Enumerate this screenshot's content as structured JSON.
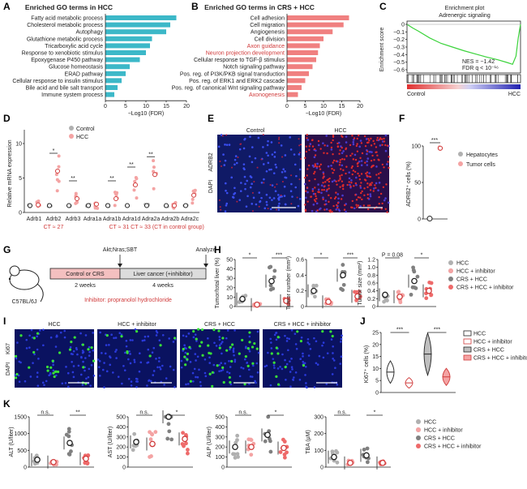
{
  "figure": {
    "panels": {
      "A": {
        "label": "A",
        "title": "Enriched GO terms in HCC",
        "xlabel": "−Log10 (FDR)",
        "ticks": [
          "0",
          "5",
          "10",
          "15",
          "20"
        ],
        "terms": [
          "Fatty acid metabolic process",
          "Cholesterol metabolic process",
          "Autophagy",
          "Glutathione metabolic process",
          "Tricarboxylic acid cycle",
          "Response to xenobiotic stimulus",
          "Epoxygenase P450 pathway",
          "Glucose homeostasis",
          "ERAD pathway",
          "Cellular response to insulin stimulus",
          "Bile acid and bile salt transport",
          "Immune system process"
        ],
        "values": [
          17.5,
          16,
          15,
          11.5,
          11,
          10,
          8.5,
          6,
          5,
          4,
          3,
          2.2
        ],
        "color": "#3cb8c8"
      },
      "B": {
        "label": "B",
        "title": "Enriched GO terms in CRS + HCC",
        "xlabel": "−Log10 (FDR)",
        "ticks": [
          "0",
          "5",
          "10",
          "15",
          "20"
        ],
        "terms": [
          "Cell adhesion",
          "Cell migration",
          "Angiogenesis",
          "Cell division",
          "Axon guidance",
          "Neuron projection development",
          "Cellular response to TGF-β stimulus",
          "Notch signaling pathway",
          "Pos. reg. of PI3K/PKB signal transduction",
          "Pos. reg. of ERK1 and ERK2 cascade",
          "Pos. reg. of canonical Wnt signaling pathway",
          "Axonogenesis"
        ],
        "highlight": [
          false,
          false,
          false,
          false,
          true,
          true,
          false,
          false,
          false,
          false,
          false,
          true
        ],
        "values": [
          17,
          15.5,
          12.5,
          10,
          9,
          8.5,
          8,
          7,
          6,
          5,
          4,
          3
        ],
        "color": "#f08080"
      },
      "C": {
        "label": "C",
        "title_line1": "Enrichment plot",
        "title_line2": "Adrenergic signaling",
        "ylabel": "Enrichment score",
        "yticks": [
          "0",
          "−0.1",
          "−0.2",
          "−0.3",
          "−0.4",
          "−0.5",
          "−0.6"
        ],
        "nes": "NES = −1.42",
        "fdr": "FDR q < 10⁻¹⁶",
        "left": "Control",
        "right": "HCC"
      },
      "D": {
        "label": "D",
        "ylabel": "Relative mRNA expression",
        "legend": [
          "Control",
          "HCC"
        ],
        "genes": [
          "Adrb1",
          "Adrb2",
          "Adrb3",
          "Adra1a",
          "Adra1b",
          "Adra1d",
          "Adra2a",
          "Adra2b",
          "Adra2c"
        ],
        "control_means": [
          1,
          1,
          1,
          1,
          1,
          1,
          1,
          1,
          1
        ],
        "hcc_means": [
          1.1,
          6,
          2,
          1.2,
          2,
          4,
          5.5,
          1,
          2.5
        ],
        "sig": [
          "",
          "*",
          "**",
          "",
          "**",
          "**",
          "**",
          "",
          ""
        ],
        "yticks": [
          "0",
          "5",
          "10"
        ],
        "ct1": "CT ≈ 27",
        "ct2": "CT ≈ 31 CT ≈ 33 (CT in control group)"
      },
      "E": {
        "label": "E",
        "left": "Control",
        "right": "HCC",
        "stain1": "ADRB2",
        "stain2": "DAPI"
      },
      "F": {
        "label": "F",
        "ylabel": "ADRB2⁺ cells (%)",
        "yticks": [
          "0",
          "50",
          "100"
        ],
        "legend": [
          "Hepatocytes",
          "Tumor cells"
        ],
        "sig": "***",
        "values": [
          0.5,
          97
        ]
      },
      "G": {
        "label": "G",
        "strain": "C57BL/6J",
        "injection": "Akt;Nras;SBT",
        "analyze": "Analyze",
        "box1": "Control or CRS",
        "box2": "Liver cancer (+inhibitor)",
        "dur1": "2 weeks",
        "dur2": "4 weeks",
        "inhibitor": "Inhibitor: propranolol hydrochloride"
      },
      "H": {
        "label": "H",
        "legend": [
          "HCC",
          "HCC + inhibitor",
          "CRS + HCC",
          "CRS + HCC + inhibitor"
        ],
        "plots": [
          {
            "ylabel": "Tumor/total liver (%)",
            "yticks": [
              "0",
              "10",
              "20",
              "30",
              "40",
              "50"
            ],
            "max": 50,
            "means": [
              8,
              2,
              27,
              6
            ],
            "sig": [
              "*",
              "***"
            ]
          },
          {
            "ylabel": "Tumor number (mm²)",
            "yticks": [
              "0",
              "0.2",
              "0.4",
              "0.6"
            ],
            "max": 0.6,
            "means": [
              0.2,
              0.06,
              0.4,
              0.13
            ],
            "sig": [
              "*",
              "***"
            ]
          },
          {
            "ylabel": "Tumor size (mm²)",
            "yticks": [
              "0",
              "0.2",
              "0.4",
              "0.6",
              "0.8",
              "1.0",
              "1.2"
            ],
            "max": 1.2,
            "means": [
              0.3,
              0.25,
              0.65,
              0.4
            ],
            "sig": [
              "P = 0.08",
              "*"
            ]
          }
        ]
      },
      "I": {
        "label": "I",
        "groups": [
          "HCC",
          "HCC + inhibitor",
          "CRS + HCC",
          "CRS + HCC + inhibitor"
        ],
        "stain1": "Ki67",
        "stain2": "DAPI"
      },
      "J": {
        "label": "J",
        "ylabel": "Ki67⁺ cells (%)",
        "yticks": [
          "0",
          "5",
          "10",
          "15",
          "20",
          "25"
        ],
        "sig": [
          "***",
          "***"
        ],
        "medians": [
          8.5,
          4,
          16,
          6.5
        ],
        "legend": [
          "HCC",
          "HCC + inhibitor",
          "CRS + HCC",
          "CRS + HCC + inhibitor"
        ]
      },
      "K": {
        "label": "K",
        "legend": [
          "HCC",
          "HCC + inhibitor",
          "CRS + HCC",
          "CRS + HCC + inhibitor"
        ],
        "plots": [
          {
            "ylabel": "ALT (U/liter)",
            "yticks": [
              "0",
              "500",
              "1000",
              "1500"
            ],
            "max": 1500,
            "means": [
              220,
              150,
              720,
              250
            ],
            "sig": [
              "n.s.",
              "**"
            ]
          },
          {
            "ylabel": "AST (U/liter)",
            "yticks": [
              "0",
              "100",
              "200",
              "300",
              "400",
              "500"
            ],
            "max": 500,
            "means": [
              250,
              230,
              500,
              280
            ],
            "sig": [
              "n.s.",
              "*"
            ]
          },
          {
            "ylabel": "ALP (U/liter)",
            "yticks": [
              "0",
              "100",
              "200",
              "300",
              "400",
              "500"
            ],
            "max": 500,
            "means": [
              200,
              200,
              320,
              190
            ],
            "sig": [
              "n.s.",
              "*"
            ]
          },
          {
            "ylabel": "TBA (μM)",
            "yticks": [
              "0",
              "100",
              "200",
              "300"
            ],
            "max": 300,
            "means": [
              60,
              25,
              70,
              25
            ],
            "sig": [
              "n.s.",
              "*"
            ]
          }
        ]
      }
    },
    "colors": {
      "hcc_grey": "#b0b0b0",
      "inh_pink": "#f4a3a3",
      "crs_dark": "#808080",
      "crs_inh_red": "#ee6a6a"
    }
  }
}
